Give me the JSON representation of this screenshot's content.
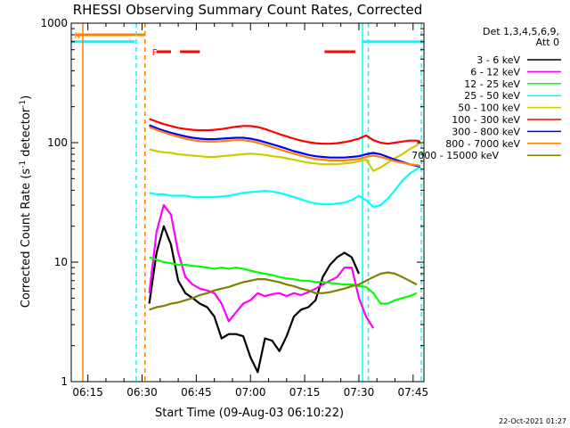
{
  "chart_data": {
    "type": "line",
    "title": "RHESSI Observing Summary Count Rates, Corrected",
    "xlabel": "Start Time (09-Aug-03 06:10:22)",
    "ylabel": "Corrected Count Rate (s",
    "ylabel_sup": "-1",
    "ylabel_mid": " detector",
    "ylabel_end": ")",
    "yscale": "log",
    "ylim": [
      1,
      1000
    ],
    "xlim": [
      10.4,
      108.0
    ],
    "x_units": "minutes after 06:00 UT",
    "y_ticks": [
      {
        "value": 1,
        "label": "1"
      },
      {
        "value": 10,
        "label": "10"
      },
      {
        "value": 100,
        "label": "100"
      },
      {
        "value": 1000,
        "label": "1000"
      }
    ],
    "x_ticks": [
      {
        "value": 15,
        "label": "06:15"
      },
      {
        "value": 30,
        "label": "06:30"
      },
      {
        "value": 45,
        "label": "06:45"
      },
      {
        "value": 60,
        "label": "07:00"
      },
      {
        "value": 75,
        "label": "07:15"
      },
      {
        "value": 90,
        "label": "07:30"
      },
      {
        "value": 105,
        "label": "07:45"
      }
    ],
    "legend_header": [
      "Det 1,3,4,5,6,9,",
      "Att 0"
    ],
    "legend_position": "right",
    "flare_marker": {
      "label": "F",
      "color": "#ff0000",
      "segments": [
        [
          34.0,
          38.0
        ],
        [
          40.5,
          46.0
        ],
        [
          80.5,
          89.0
        ]
      ]
    },
    "status_bars": [
      {
        "label": "N",
        "color": "#ff8000",
        "x0": 11.5,
        "x1": 31.0,
        "level": 800
      },
      {
        "label": "",
        "color": "#00ffff",
        "x0": 10.4,
        "x1": 28.0,
        "level": 700
      },
      {
        "label": "",
        "color": "#00ffff",
        "x0": 91.0,
        "x1": 108.0,
        "level": 700
      }
    ],
    "vertical_markers": [
      {
        "x": 13.6,
        "color": "#ff8000",
        "style": "solid"
      },
      {
        "x": 30.8,
        "color": "#ff8000",
        "style": "dashed"
      },
      {
        "x": 28.4,
        "color": "#00ffff",
        "style": "dashed"
      },
      {
        "x": 91.0,
        "color": "#00ffff",
        "style": "solid"
      },
      {
        "x": 92.6,
        "color": "#00ffff",
        "style": "dashed"
      },
      {
        "x": 107.3,
        "color": "#00ffff",
        "style": "dashed"
      }
    ],
    "series": [
      {
        "name": "3 - 6 keV",
        "color": "#000000",
        "x": [
          32,
          34,
          36,
          38,
          40,
          42,
          44,
          46,
          48,
          50,
          52,
          54,
          56,
          58,
          60,
          62,
          64,
          66,
          68,
          70,
          72,
          74,
          76,
          78,
          80,
          82,
          84,
          86,
          88,
          90
        ],
        "y": [
          4.5,
          12,
          20,
          14,
          7,
          5.5,
          5,
          4.5,
          4.2,
          3.5,
          2.3,
          2.5,
          2.5,
          2.4,
          1.6,
          1.2,
          2.3,
          2.2,
          1.8,
          2.4,
          3.5,
          4.0,
          4.2,
          4.8,
          7.5,
          9.5,
          11,
          12,
          11,
          8
        ]
      },
      {
        "name": "6 - 12 keV",
        "color": "#ff00ff",
        "x": [
          32,
          34,
          36,
          38,
          40,
          42,
          44,
          46,
          48,
          50,
          52,
          54,
          56,
          58,
          60,
          62,
          64,
          66,
          68,
          70,
          72,
          74,
          76,
          78,
          80,
          82,
          84,
          86,
          88,
          90,
          92,
          94
        ],
        "y": [
          5.5,
          18,
          30,
          25,
          12,
          7.5,
          6.5,
          6,
          5.8,
          5.5,
          4.5,
          3.2,
          3.8,
          4.5,
          4.8,
          5.5,
          5.2,
          5.4,
          5.5,
          5.2,
          5.5,
          5.3,
          5.6,
          6.0,
          6.5,
          7.0,
          7.5,
          9.0,
          9.0,
          5.0,
          3.5,
          2.8
        ]
      },
      {
        "name": "12 - 25 keV",
        "color": "#00ff00",
        "x": [
          32,
          34,
          36,
          38,
          40,
          42,
          44,
          46,
          48,
          50,
          52,
          54,
          56,
          58,
          60,
          62,
          64,
          66,
          68,
          70,
          72,
          74,
          76,
          78,
          80,
          82,
          84,
          86,
          88,
          90,
          92,
          94,
          96,
          98,
          100,
          102,
          104,
          106
        ],
        "y": [
          11,
          10.5,
          10,
          9.8,
          9.5,
          9.5,
          9.3,
          9.2,
          9.0,
          8.8,
          9.0,
          8.8,
          9.0,
          8.8,
          8.5,
          8.2,
          8.0,
          7.8,
          7.5,
          7.3,
          7.2,
          7.0,
          7.0,
          6.8,
          6.8,
          6.7,
          6.6,
          6.5,
          6.5,
          6.3,
          6.2,
          5.5,
          4.5,
          4.5,
          4.8,
          5.0,
          5.2,
          5.5
        ]
      },
      {
        "name": "25 - 50 keV",
        "color": "#00ffff",
        "x": [
          32,
          34,
          36,
          38,
          40,
          42,
          44,
          46,
          48,
          50,
          52,
          54,
          56,
          58,
          60,
          62,
          64,
          66,
          68,
          70,
          72,
          74,
          76,
          78,
          80,
          82,
          84,
          86,
          88,
          90,
          92,
          94,
          96,
          98,
          100,
          102,
          104,
          106,
          107
        ],
        "y": [
          38,
          37,
          37,
          36,
          36,
          36,
          35,
          35,
          35,
          35,
          35.5,
          36,
          37,
          38,
          38.5,
          39,
          39.5,
          39,
          38,
          36.5,
          35,
          33.5,
          32,
          31,
          30.5,
          30.5,
          31,
          31.5,
          33,
          36,
          33,
          29,
          30,
          34,
          40,
          48,
          55,
          60,
          63
        ]
      },
      {
        "name": "50 - 100 keV",
        "color": "#cccc00",
        "x": [
          32,
          34,
          36,
          38,
          40,
          42,
          44,
          46,
          48,
          50,
          52,
          54,
          56,
          58,
          60,
          62,
          64,
          66,
          68,
          70,
          72,
          74,
          76,
          78,
          80,
          82,
          84,
          86,
          88,
          90,
          92,
          94,
          96,
          98,
          100,
          102,
          104,
          106,
          107
        ],
        "y": [
          88,
          85,
          83,
          82,
          80,
          79,
          78,
          77,
          76,
          76,
          77,
          78,
          79,
          80,
          81,
          80,
          79,
          77,
          76,
          74,
          72,
          70,
          68,
          67,
          66,
          66,
          66,
          67,
          68,
          70,
          72,
          58,
          62,
          68,
          74,
          80,
          88,
          95,
          100
        ]
      },
      {
        "name": "100 - 300 keV",
        "color": "#ff0000",
        "x": [
          32,
          34,
          36,
          38,
          40,
          42,
          44,
          46,
          48,
          50,
          52,
          54,
          56,
          58,
          60,
          62,
          64,
          66,
          68,
          70,
          72,
          74,
          76,
          78,
          80,
          82,
          84,
          86,
          88,
          90,
          92,
          94,
          96,
          98,
          100,
          102,
          104,
          106,
          107
        ],
        "y": [
          158,
          150,
          143,
          138,
          133,
          130,
          128,
          127,
          127,
          128,
          130,
          133,
          136,
          138,
          138,
          135,
          130,
          124,
          118,
          113,
          108,
          104,
          101,
          99,
          98,
          98,
          99,
          101,
          104,
          108,
          115,
          105,
          100,
          98,
          100,
          102,
          104,
          104,
          102
        ]
      },
      {
        "name": "300 - 800 keV",
        "color": "#0000ff",
        "x": [
          32,
          34,
          36,
          38,
          40,
          42,
          44,
          46,
          48,
          50,
          52,
          54,
          56,
          58,
          60,
          62,
          64,
          66,
          68,
          70,
          72,
          74,
          76,
          78,
          80,
          82,
          84,
          86,
          88,
          90,
          92,
          94,
          96,
          98,
          100,
          102,
          104,
          106,
          107
        ],
        "y": [
          140,
          132,
          126,
          121,
          117,
          113,
          110,
          108,
          107,
          107,
          108,
          109,
          110,
          110,
          108,
          105,
          101,
          97,
          93,
          89,
          85,
          82,
          79,
          77,
          76,
          75,
          75,
          75,
          76,
          77,
          80,
          82,
          80,
          76,
          72,
          69,
          66,
          64,
          63
        ]
      },
      {
        "name": "800 - 7000 keV",
        "color": "#ff8000",
        "x": [
          32,
          34,
          36,
          38,
          40,
          42,
          44,
          46,
          48,
          50,
          52,
          54,
          56,
          58,
          60,
          62,
          64,
          66,
          68,
          70,
          72,
          74,
          76,
          78,
          80,
          82,
          84,
          86,
          88,
          90,
          92,
          94,
          96,
          98,
          100,
          102,
          104,
          106,
          107
        ],
        "y": [
          135,
          128,
          122,
          117,
          112,
          108,
          105,
          103,
          102,
          102,
          103,
          104,
          105,
          105,
          103,
          100,
          96,
          92,
          88,
          84,
          81,
          78,
          75,
          73,
          72,
          71,
          71,
          71,
          72,
          73,
          76,
          78,
          76,
          73,
          70,
          68,
          66,
          65,
          64
        ]
      },
      {
        "name": "7000 - 15000 keV",
        "color": "#808000",
        "x": [
          32,
          34,
          36,
          38,
          40,
          42,
          44,
          46,
          48,
          50,
          52,
          54,
          56,
          58,
          60,
          62,
          64,
          66,
          68,
          70,
          72,
          74,
          76,
          78,
          80,
          82,
          84,
          86,
          88,
          90,
          92,
          94,
          96,
          98,
          100,
          102,
          104,
          106
        ],
        "y": [
          4.0,
          4.2,
          4.3,
          4.5,
          4.6,
          4.8,
          5.0,
          5.3,
          5.5,
          5.8,
          6.0,
          6.2,
          6.5,
          6.8,
          7.0,
          7.2,
          7.2,
          7.0,
          6.8,
          6.5,
          6.3,
          6.0,
          5.8,
          5.5,
          5.5,
          5.6,
          5.8,
          6.0,
          6.3,
          6.5,
          7.0,
          7.5,
          8.0,
          8.2,
          8.0,
          7.5,
          7.0,
          6.5
        ]
      }
    ]
  },
  "timestamp": "22-Oct-2021 01:27"
}
